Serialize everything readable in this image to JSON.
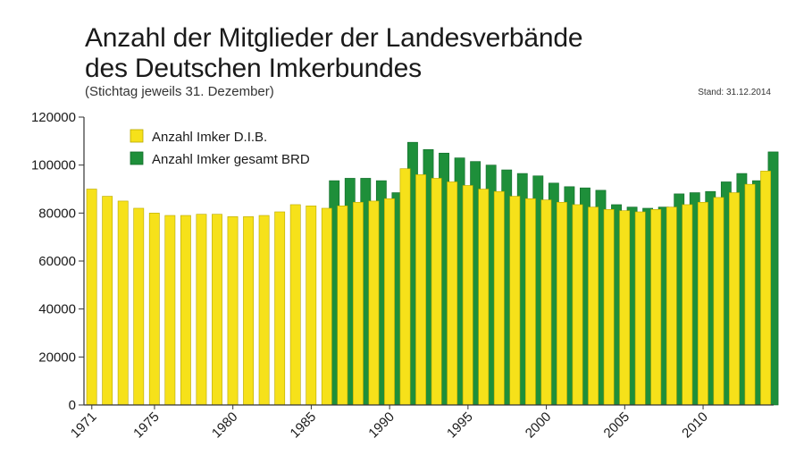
{
  "title_line1": "Anzahl der Mitglieder der Landesverbände",
  "title_line2": "des Deutschen Imkerbundes",
  "subtitle": "(Stichtag jeweils 31. Dezember)",
  "stand": "Stand: 31.12.2014",
  "colors": {
    "dib": "#f6e11a",
    "dib_stroke": "#b8a800",
    "brd": "#1e8f3a",
    "brd_stroke": "#0f6a28",
    "axis": "#333333"
  },
  "chart_data": {
    "type": "bar",
    "title": "Anzahl der Mitglieder der Landesverbände des Deutschen Imkerbundes",
    "subtitle": "(Stichtag jeweils 31. Dezember)",
    "ylim": [
      0,
      120000
    ],
    "yticks": [
      "0",
      "20000",
      "40000",
      "60000",
      "80000",
      "100000",
      "120000"
    ],
    "xticks": [
      "1971",
      "1975",
      "1980",
      "1985",
      "1990",
      "1995",
      "2000",
      "2005",
      "2010"
    ],
    "categories": [
      1971,
      1972,
      1973,
      1974,
      1975,
      1976,
      1977,
      1978,
      1979,
      1980,
      1981,
      1982,
      1983,
      1984,
      1985,
      1986,
      1987,
      1988,
      1989,
      1990,
      1991,
      1992,
      1993,
      1994,
      1995,
      1996,
      1997,
      1998,
      1999,
      2000,
      2001,
      2002,
      2003,
      2004,
      2005,
      2006,
      2007,
      2008,
      2009,
      2010,
      2011,
      2012,
      2013,
      2014
    ],
    "legend": [
      "Anzahl Imker D.I.B.",
      "Anzahl Imker gesamt BRD"
    ],
    "series": [
      {
        "name": "Anzahl Imker D.I.B.",
        "values": [
          90000,
          87000,
          85000,
          82000,
          80000,
          79000,
          79000,
          79500,
          79500,
          78500,
          78500,
          79000,
          80500,
          83500,
          83000,
          82000,
          83000,
          84500,
          85000,
          86000,
          98500,
          96000,
          94500,
          93000,
          91500,
          90000,
          89000,
          87000,
          86000,
          85500,
          84500,
          83500,
          82500,
          81500,
          81000,
          80500,
          81500,
          82500,
          83500,
          84500,
          86500,
          88500,
          92000,
          97500
        ]
      },
      {
        "name": "Anzahl Imker gesamt BRD",
        "values": [
          null,
          null,
          null,
          null,
          null,
          null,
          null,
          null,
          null,
          null,
          null,
          null,
          null,
          null,
          null,
          93500,
          94500,
          94500,
          93500,
          88500,
          109500,
          106500,
          105000,
          103000,
          101500,
          100000,
          98000,
          96500,
          95500,
          92500,
          91000,
          90500,
          89500,
          83500,
          82500,
          82000,
          82500,
          88000,
          88500,
          89000,
          93000,
          96500,
          93500,
          105500
        ]
      }
    ]
  }
}
